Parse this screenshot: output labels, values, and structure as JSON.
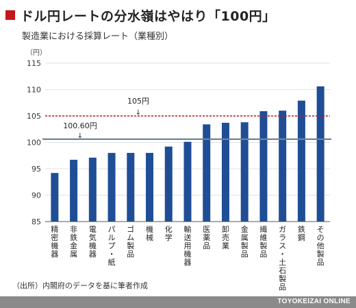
{
  "header": {
    "title": "ドル円レートの分水嶺はやはり「100円」",
    "subtitle": "製造業における採算レート（業種別）",
    "unit": "（円）"
  },
  "footer": {
    "source": "（出所）内閣府のデータを基に筆者作成",
    "brand": "TOYOKEIZAI ONLINE"
  },
  "colors": {
    "bar": "#1f4e96",
    "accent": "#c4161c",
    "reference_line_105": "#c4161c",
    "reference_line_100_60": "#6f8496"
  },
  "chart_data": {
    "type": "bar",
    "title": "",
    "xlabel": "",
    "ylabel": "（円）",
    "ylim": [
      85,
      115
    ],
    "yticks": [
      85,
      90,
      95,
      100,
      105,
      110,
      115
    ],
    "grid": true,
    "categories": [
      "精密機器",
      "非鉄金属",
      "電気機器",
      "パルプ・紙",
      "ゴム製品",
      "機械",
      "化学",
      "輸送用機器",
      "医薬品",
      "卸売業",
      "金属製品",
      "繊維製品",
      "ガラス・土石製品",
      "鉄鋼",
      "その他製品"
    ],
    "values": [
      94.2,
      96.7,
      97.1,
      98.0,
      98.0,
      98.0,
      99.2,
      100.1,
      103.4,
      103.7,
      103.8,
      105.9,
      106.0,
      107.9,
      110.6
    ],
    "reference_lines": [
      {
        "value": 105,
        "label": "105円",
        "style": "dashed"
      },
      {
        "value": 100.6,
        "label": "100.60円",
        "style": "solid"
      }
    ]
  }
}
